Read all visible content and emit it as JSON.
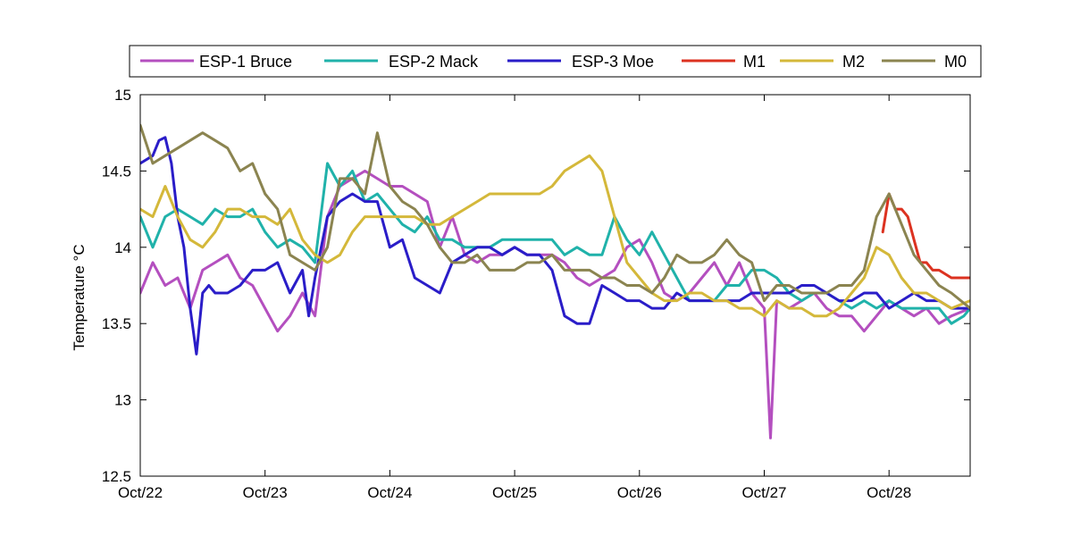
{
  "chart_data": {
    "type": "line",
    "title": "",
    "xlabel": "",
    "ylabel": "Temperature °C",
    "xlim": [
      0,
      6.65
    ],
    "ylim": [
      12.5,
      15
    ],
    "grid": false,
    "legend_position": "top",
    "x_ticks": [
      {
        "value": 0,
        "label": "Oct/22"
      },
      {
        "value": 1,
        "label": "Oct/23"
      },
      {
        "value": 2,
        "label": "Oct/24"
      },
      {
        "value": 3,
        "label": "Oct/25"
      },
      {
        "value": 4,
        "label": "Oct/26"
      },
      {
        "value": 5,
        "label": "Oct/27"
      },
      {
        "value": 6,
        "label": "Oct/28"
      }
    ],
    "y_ticks": [
      {
        "value": 12.5,
        "label": "12.5"
      },
      {
        "value": 13,
        "label": "13"
      },
      {
        "value": 13.5,
        "label": "13.5"
      },
      {
        "value": 14,
        "label": "14"
      },
      {
        "value": 14.5,
        "label": "14.5"
      },
      {
        "value": 15,
        "label": "15"
      }
    ],
    "series": [
      {
        "name": "ESP-1 Bruce",
        "color": "#b44fbf",
        "x": [
          0,
          0.1,
          0.2,
          0.3,
          0.4,
          0.5,
          0.6,
          0.7,
          0.8,
          0.9,
          1.0,
          1.1,
          1.2,
          1.3,
          1.4,
          1.5,
          1.6,
          1.7,
          1.8,
          1.9,
          2.0,
          2.1,
          2.2,
          2.3,
          2.4,
          2.5,
          2.6,
          2.7,
          2.8,
          2.9,
          3.0,
          3.1,
          3.2,
          3.3,
          3.4,
          3.5,
          3.6,
          3.7,
          3.8,
          3.9,
          4.0,
          4.1,
          4.2,
          4.3,
          4.4,
          4.5,
          4.6,
          4.7,
          4.8,
          4.9,
          5.0,
          5.05,
          5.1,
          5.2,
          5.3,
          5.4,
          5.5,
          5.6,
          5.7,
          5.8,
          5.9,
          6.0,
          6.1,
          6.2,
          6.3,
          6.4,
          6.5,
          6.65
        ],
        "values": [
          13.7,
          13.9,
          13.75,
          13.8,
          13.6,
          13.85,
          13.9,
          13.95,
          13.8,
          13.75,
          13.6,
          13.45,
          13.55,
          13.7,
          13.55,
          14.2,
          14.4,
          14.45,
          14.5,
          14.45,
          14.4,
          14.4,
          14.35,
          14.3,
          14.0,
          14.2,
          13.95,
          13.9,
          13.95,
          13.95,
          14.0,
          13.95,
          13.95,
          13.95,
          13.9,
          13.8,
          13.75,
          13.8,
          13.85,
          14.0,
          14.05,
          13.9,
          13.7,
          13.65,
          13.7,
          13.8,
          13.9,
          13.75,
          13.9,
          13.7,
          13.6,
          12.75,
          13.65,
          13.6,
          13.65,
          13.7,
          13.6,
          13.55,
          13.55,
          13.45,
          13.55,
          13.65,
          13.6,
          13.55,
          13.6,
          13.5,
          13.55,
          13.6
        ]
      },
      {
        "name": "ESP-2 Mack",
        "color": "#20b2aa",
        "x": [
          0,
          0.1,
          0.2,
          0.3,
          0.4,
          0.5,
          0.6,
          0.7,
          0.8,
          0.9,
          1.0,
          1.1,
          1.2,
          1.3,
          1.4,
          1.5,
          1.6,
          1.7,
          1.8,
          1.9,
          2.0,
          2.1,
          2.2,
          2.3,
          2.4,
          2.5,
          2.6,
          2.7,
          2.8,
          2.9,
          3.0,
          3.1,
          3.2,
          3.3,
          3.4,
          3.5,
          3.6,
          3.7,
          3.8,
          3.9,
          4.0,
          4.1,
          4.2,
          4.3,
          4.4,
          4.5,
          4.6,
          4.7,
          4.8,
          4.9,
          5.0,
          5.1,
          5.2,
          5.3,
          5.4,
          5.5,
          5.6,
          5.7,
          5.8,
          5.9,
          6.0,
          6.1,
          6.2,
          6.3,
          6.4,
          6.5,
          6.6,
          6.65
        ],
        "values": [
          14.2,
          14.0,
          14.2,
          14.25,
          14.2,
          14.15,
          14.25,
          14.2,
          14.2,
          14.25,
          14.1,
          14.0,
          14.05,
          14.0,
          13.9,
          14.55,
          14.4,
          14.5,
          14.3,
          14.35,
          14.25,
          14.15,
          14.1,
          14.2,
          14.05,
          14.05,
          14.0,
          14.0,
          14.0,
          14.05,
          14.05,
          14.05,
          14.05,
          14.05,
          13.95,
          14.0,
          13.95,
          13.95,
          14.2,
          14.05,
          13.95,
          14.1,
          13.95,
          13.8,
          13.65,
          13.65,
          13.65,
          13.75,
          13.75,
          13.85,
          13.85,
          13.8,
          13.7,
          13.65,
          13.7,
          13.7,
          13.65,
          13.6,
          13.65,
          13.6,
          13.65,
          13.6,
          13.6,
          13.6,
          13.6,
          13.5,
          13.55,
          13.6
        ]
      },
      {
        "name": "ESP-3 Moe",
        "color": "#2a1dc8",
        "x": [
          0,
          0.1,
          0.15,
          0.2,
          0.25,
          0.3,
          0.35,
          0.4,
          0.45,
          0.5,
          0.55,
          0.6,
          0.7,
          0.8,
          0.9,
          1.0,
          1.1,
          1.2,
          1.3,
          1.35,
          1.4,
          1.5,
          1.6,
          1.7,
          1.8,
          1.9,
          2.0,
          2.1,
          2.2,
          2.3,
          2.4,
          2.5,
          2.6,
          2.7,
          2.8,
          2.9,
          3.0,
          3.1,
          3.2,
          3.3,
          3.4,
          3.5,
          3.6,
          3.7,
          3.8,
          3.9,
          4.0,
          4.1,
          4.2,
          4.3,
          4.4,
          4.5,
          4.6,
          4.7,
          4.8,
          4.9,
          5.0,
          5.1,
          5.2,
          5.3,
          5.4,
          5.5,
          5.6,
          5.7,
          5.8,
          5.9,
          6.0,
          6.1,
          6.2,
          6.3,
          6.4,
          6.5,
          6.65
        ],
        "values": [
          14.55,
          14.6,
          14.7,
          14.72,
          14.55,
          14.2,
          14.0,
          13.6,
          13.3,
          13.7,
          13.75,
          13.7,
          13.7,
          13.75,
          13.85,
          13.85,
          13.9,
          13.7,
          13.85,
          13.55,
          13.8,
          14.2,
          14.3,
          14.35,
          14.3,
          14.3,
          14.0,
          14.05,
          13.8,
          13.75,
          13.7,
          13.9,
          13.95,
          14.0,
          14.0,
          13.95,
          14.0,
          13.95,
          13.95,
          13.85,
          13.55,
          13.5,
          13.5,
          13.75,
          13.7,
          13.65,
          13.65,
          13.6,
          13.6,
          13.7,
          13.65,
          13.65,
          13.65,
          13.65,
          13.65,
          13.7,
          13.7,
          13.7,
          13.7,
          13.75,
          13.75,
          13.7,
          13.65,
          13.65,
          13.7,
          13.7,
          13.6,
          13.65,
          13.7,
          13.65,
          13.65,
          13.6,
          13.6
        ]
      },
      {
        "name": "M1",
        "color": "#dc3220",
        "x": [
          5.95,
          6.0,
          6.05,
          6.1,
          6.15,
          6.2,
          6.25,
          6.3,
          6.35,
          6.4,
          6.5,
          6.6,
          6.65
        ],
        "values": [
          14.1,
          14.35,
          14.25,
          14.25,
          14.2,
          14.05,
          13.9,
          13.9,
          13.85,
          13.85,
          13.8,
          13.8,
          13.8
        ]
      },
      {
        "name": "M2",
        "color": "#d4b83a",
        "x": [
          0,
          0.1,
          0.2,
          0.3,
          0.4,
          0.5,
          0.6,
          0.7,
          0.8,
          0.9,
          1.0,
          1.1,
          1.2,
          1.3,
          1.4,
          1.5,
          1.6,
          1.7,
          1.8,
          1.9,
          2.0,
          2.1,
          2.2,
          2.3,
          2.4,
          2.5,
          2.6,
          2.7,
          2.8,
          2.9,
          3.0,
          3.1,
          3.2,
          3.3,
          3.4,
          3.5,
          3.6,
          3.7,
          3.8,
          3.9,
          4.0,
          4.1,
          4.2,
          4.3,
          4.4,
          4.5,
          4.6,
          4.7,
          4.8,
          4.9,
          5.0,
          5.1,
          5.2,
          5.3,
          5.4,
          5.5,
          5.6,
          5.7,
          5.8,
          5.9,
          6.0,
          6.1,
          6.2,
          6.3,
          6.4,
          6.5,
          6.65
        ],
        "values": [
          14.25,
          14.2,
          14.4,
          14.2,
          14.05,
          14.0,
          14.1,
          14.25,
          14.25,
          14.2,
          14.2,
          14.15,
          14.25,
          14.05,
          13.95,
          13.9,
          13.95,
          14.1,
          14.2,
          14.2,
          14.2,
          14.2,
          14.2,
          14.15,
          14.15,
          14.2,
          14.25,
          14.3,
          14.35,
          14.35,
          14.35,
          14.35,
          14.35,
          14.4,
          14.5,
          14.55,
          14.6,
          14.5,
          14.2,
          13.9,
          13.8,
          13.7,
          13.65,
          13.65,
          13.7,
          13.7,
          13.65,
          13.65,
          13.6,
          13.6,
          13.55,
          13.65,
          13.6,
          13.6,
          13.55,
          13.55,
          13.6,
          13.7,
          13.8,
          14.0,
          13.95,
          13.8,
          13.7,
          13.7,
          13.65,
          13.6,
          13.65
        ]
      },
      {
        "name": "M0",
        "color": "#8b8450",
        "x": [
          0,
          0.1,
          0.2,
          0.3,
          0.4,
          0.5,
          0.6,
          0.7,
          0.8,
          0.9,
          1.0,
          1.1,
          1.2,
          1.3,
          1.4,
          1.5,
          1.6,
          1.7,
          1.8,
          1.9,
          2.0,
          2.1,
          2.2,
          2.3,
          2.4,
          2.5,
          2.6,
          2.7,
          2.8,
          2.9,
          3.0,
          3.1,
          3.2,
          3.3,
          3.4,
          3.5,
          3.6,
          3.7,
          3.8,
          3.9,
          4.0,
          4.1,
          4.2,
          4.3,
          4.4,
          4.5,
          4.6,
          4.7,
          4.8,
          4.9,
          5.0,
          5.1,
          5.2,
          5.3,
          5.4,
          5.5,
          5.6,
          5.7,
          5.8,
          5.9,
          6.0,
          6.1,
          6.2,
          6.3,
          6.4,
          6.5,
          6.65
        ],
        "values": [
          14.8,
          14.55,
          14.6,
          14.65,
          14.7,
          14.75,
          14.7,
          14.65,
          14.5,
          14.55,
          14.35,
          14.25,
          13.95,
          13.9,
          13.85,
          14.0,
          14.45,
          14.45,
          14.35,
          14.75,
          14.4,
          14.3,
          14.25,
          14.15,
          14.0,
          13.9,
          13.9,
          13.95,
          13.85,
          13.85,
          13.85,
          13.9,
          13.9,
          13.95,
          13.85,
          13.85,
          13.85,
          13.8,
          13.8,
          13.75,
          13.75,
          13.7,
          13.8,
          13.95,
          13.9,
          13.9,
          13.95,
          14.05,
          13.95,
          13.9,
          13.65,
          13.75,
          13.75,
          13.7,
          13.7,
          13.7,
          13.75,
          13.75,
          13.85,
          14.2,
          14.35,
          14.15,
          13.95,
          13.85,
          13.75,
          13.7,
          13.6
        ]
      }
    ]
  }
}
